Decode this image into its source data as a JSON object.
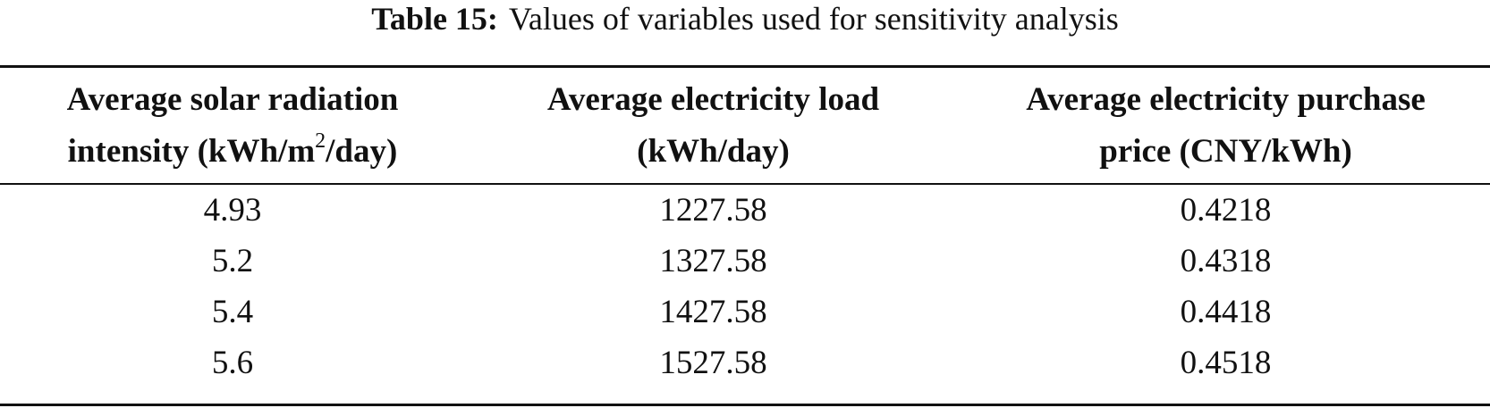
{
  "caption": {
    "label": "Table 15:",
    "text": "Values of variables used for sensitivity analysis"
  },
  "table": {
    "headers": [
      {
        "line1": "Average solar radiation",
        "line2_prefix": "intensity (kWh/m",
        "line2_sup": "2",
        "line2_suffix": "/day)"
      },
      {
        "line1": "Average electricity load",
        "line2_prefix": "(kWh/day)",
        "line2_sup": "",
        "line2_suffix": ""
      },
      {
        "line1": "Average electricity purchase",
        "line2_prefix": "price (CNY/kWh)",
        "line2_sup": "",
        "line2_suffix": ""
      }
    ],
    "rows": [
      [
        "4.93",
        "1227.58",
        "0.4218"
      ],
      [
        "5.2",
        "1327.58",
        "0.4318"
      ],
      [
        "5.4",
        "1427.58",
        "0.4418"
      ],
      [
        "5.6",
        "1527.58",
        "0.4518"
      ]
    ]
  }
}
